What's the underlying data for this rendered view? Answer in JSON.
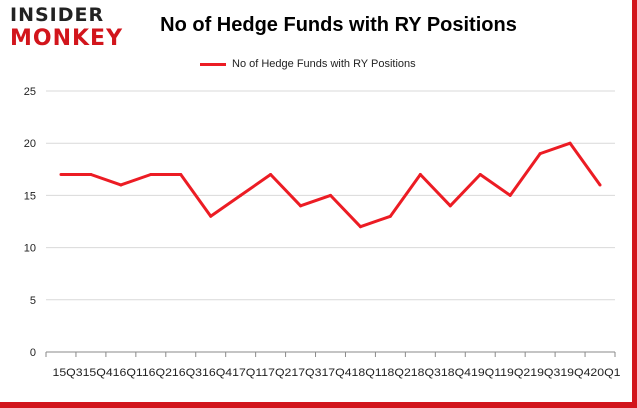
{
  "colors": {
    "series": "#ec1c24",
    "frame": "#d2151c",
    "grid": "#d9d9d9",
    "axis": "#8a8a8a"
  },
  "logo": {
    "top": "INSIDER",
    "bottom": "MONKEY"
  },
  "chart_data": {
    "type": "line",
    "title": "No of Hedge Funds with RY Positions",
    "xlabel": "",
    "ylabel": "",
    "ylim": [
      0,
      25
    ],
    "yticks": [
      0,
      5,
      10,
      15,
      20,
      25
    ],
    "grid": true,
    "legend": "top-center",
    "x_tick_text": "15Q315Q416Q116Q216Q316Q417Q117Q217Q317Q418Q118Q218Q318Q419Q119Q219Q319Q420Q1",
    "series": [
      {
        "name": "No of Hedge Funds with RY Positions",
        "values": [
          17,
          17,
          16,
          17,
          17,
          13,
          15,
          17,
          14,
          15,
          12,
          13,
          17,
          14,
          17,
          15,
          19,
          20,
          16
        ]
      }
    ]
  }
}
